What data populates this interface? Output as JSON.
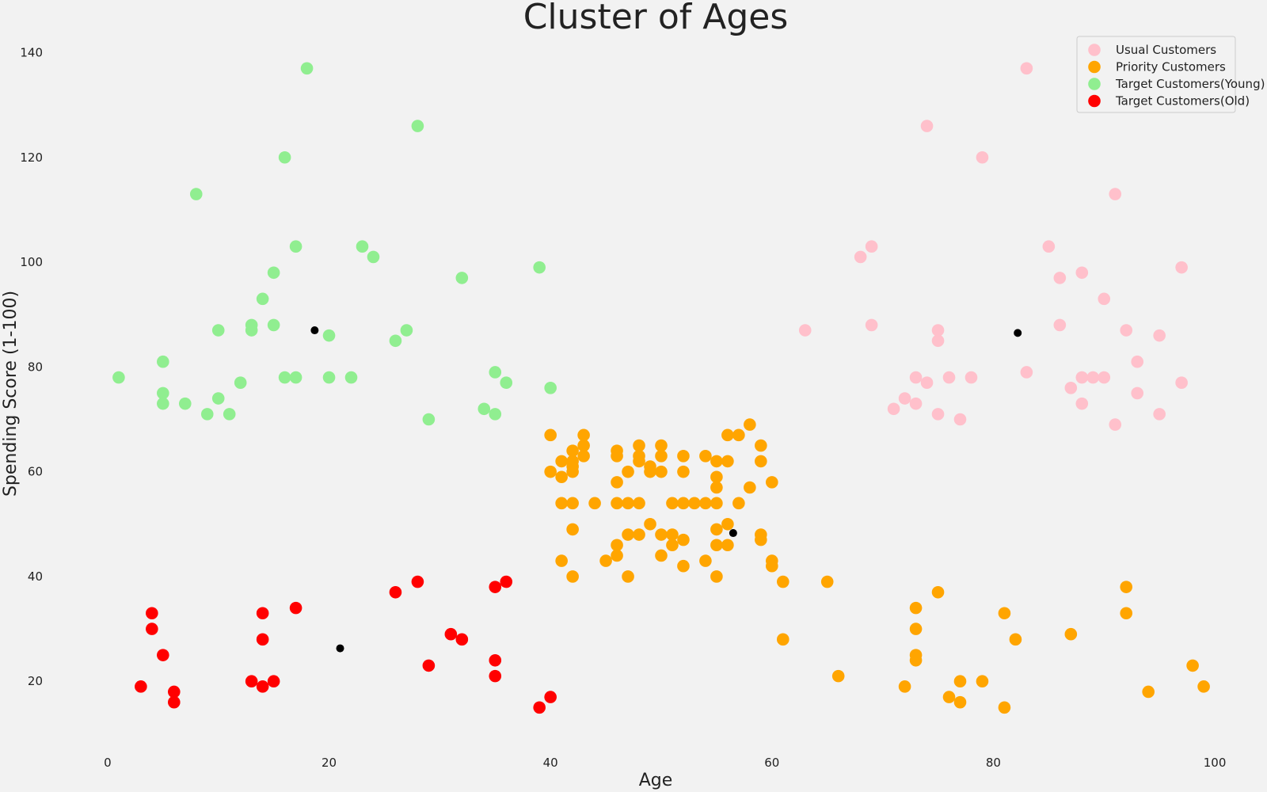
{
  "chart_data": {
    "type": "scatter",
    "title": "Cluster of Ages",
    "xlabel": "Age",
    "ylabel": "Spending Score (1-100)",
    "xlim": [
      -5,
      104
    ],
    "ylim": [
      9,
      144
    ],
    "xticks": [
      0,
      20,
      40,
      60,
      80,
      100
    ],
    "yticks": [
      20,
      40,
      60,
      80,
      100,
      120,
      140
    ],
    "grid": false,
    "legend_position": "top-right",
    "series": [
      {
        "name": "Usual Customers",
        "color": "#ffc0cb",
        "points": [
          [
            83,
            137
          ],
          [
            74,
            126
          ],
          [
            79,
            120
          ],
          [
            91,
            113
          ],
          [
            69,
            103
          ],
          [
            85,
            103
          ],
          [
            68,
            101
          ],
          [
            86,
            97
          ],
          [
            88,
            98
          ],
          [
            97,
            99
          ],
          [
            90,
            93
          ],
          [
            69,
            88
          ],
          [
            86,
            88
          ],
          [
            63,
            87
          ],
          [
            75,
            87
          ],
          [
            92,
            87
          ],
          [
            95,
            86
          ],
          [
            75,
            85
          ],
          [
            93,
            81
          ],
          [
            83,
            79
          ],
          [
            73,
            78
          ],
          [
            76,
            78
          ],
          [
            78,
            78
          ],
          [
            88,
            78
          ],
          [
            89,
            78
          ],
          [
            90,
            78
          ],
          [
            74,
            77
          ],
          [
            97,
            77
          ],
          [
            87,
            76
          ],
          [
            93,
            75
          ],
          [
            72,
            74
          ],
          [
            73,
            73
          ],
          [
            88,
            73
          ],
          [
            71,
            72
          ],
          [
            75,
            71
          ],
          [
            95,
            71
          ],
          [
            77,
            70
          ],
          [
            91,
            69
          ]
        ]
      },
      {
        "name": "Priority Customers",
        "color": "#ffa500",
        "points": [
          [
            58,
            69
          ],
          [
            40,
            67
          ],
          [
            43,
            67
          ],
          [
            56,
            67
          ],
          [
            57,
            67
          ],
          [
            43,
            65
          ],
          [
            48,
            65
          ],
          [
            50,
            65
          ],
          [
            59,
            65
          ],
          [
            42,
            64
          ],
          [
            46,
            64
          ],
          [
            54,
            63
          ],
          [
            43,
            63
          ],
          [
            46,
            63
          ],
          [
            48,
            63
          ],
          [
            50,
            63
          ],
          [
            52,
            63
          ],
          [
            41,
            62
          ],
          [
            42,
            62
          ],
          [
            48,
            62
          ],
          [
            55,
            62
          ],
          [
            56,
            62
          ],
          [
            59,
            62
          ],
          [
            42,
            61
          ],
          [
            49,
            61
          ],
          [
            40,
            60
          ],
          [
            42,
            60
          ],
          [
            47,
            60
          ],
          [
            49,
            60
          ],
          [
            50,
            60
          ],
          [
            52,
            60
          ],
          [
            41,
            59
          ],
          [
            55,
            59
          ],
          [
            46,
            58
          ],
          [
            60,
            58
          ],
          [
            55,
            57
          ],
          [
            58,
            57
          ],
          [
            41,
            54
          ],
          [
            42,
            54
          ],
          [
            44,
            54
          ],
          [
            46,
            54
          ],
          [
            47,
            54
          ],
          [
            48,
            54
          ],
          [
            51,
            54
          ],
          [
            52,
            54
          ],
          [
            53,
            54
          ],
          [
            54,
            54
          ],
          [
            55,
            54
          ],
          [
            57,
            54
          ],
          [
            49,
            50
          ],
          [
            56,
            50
          ],
          [
            42,
            49
          ],
          [
            55,
            49
          ],
          [
            47,
            48
          ],
          [
            48,
            48
          ],
          [
            50,
            48
          ],
          [
            51,
            48
          ],
          [
            59,
            48
          ],
          [
            52,
            47
          ],
          [
            59,
            47
          ],
          [
            46,
            46
          ],
          [
            51,
            46
          ],
          [
            55,
            46
          ],
          [
            56,
            46
          ],
          [
            46,
            44
          ],
          [
            50,
            44
          ],
          [
            41,
            43
          ],
          [
            45,
            43
          ],
          [
            54,
            43
          ],
          [
            60,
            43
          ],
          [
            52,
            42
          ],
          [
            60,
            42
          ],
          [
            42,
            40
          ],
          [
            47,
            40
          ],
          [
            55,
            40
          ],
          [
            61,
            39
          ],
          [
            65,
            39
          ],
          [
            92,
            38
          ],
          [
            75,
            37
          ],
          [
            73,
            34
          ],
          [
            81,
            33
          ],
          [
            92,
            33
          ],
          [
            73,
            30
          ],
          [
            87,
            29
          ],
          [
            61,
            28
          ],
          [
            82,
            28
          ],
          [
            73,
            25
          ],
          [
            73,
            24
          ],
          [
            98,
            23
          ],
          [
            66,
            21
          ],
          [
            77,
            20
          ],
          [
            79,
            20
          ],
          [
            72,
            19
          ],
          [
            99,
            19
          ],
          [
            94,
            18
          ],
          [
            76,
            17
          ],
          [
            77,
            16
          ],
          [
            81,
            15
          ]
        ]
      },
      {
        "name": "Target Customers(Young)",
        "color": "#90ee90",
        "points": [
          [
            18,
            137
          ],
          [
            28,
            126
          ],
          [
            16,
            120
          ],
          [
            8,
            113
          ],
          [
            17,
            103
          ],
          [
            23,
            103
          ],
          [
            24,
            101
          ],
          [
            39,
            99
          ],
          [
            15,
            98
          ],
          [
            32,
            97
          ],
          [
            14,
            93
          ],
          [
            13,
            88
          ],
          [
            15,
            88
          ],
          [
            10,
            87
          ],
          [
            13,
            87
          ],
          [
            27,
            87
          ],
          [
            20,
            86
          ],
          [
            26,
            85
          ],
          [
            5,
            81
          ],
          [
            35,
            79
          ],
          [
            1,
            78
          ],
          [
            16,
            78
          ],
          [
            17,
            78
          ],
          [
            20,
            78
          ],
          [
            22,
            78
          ],
          [
            12,
            77
          ],
          [
            36,
            77
          ],
          [
            40,
            76
          ],
          [
            5,
            75
          ],
          [
            10,
            74
          ],
          [
            5,
            73
          ],
          [
            7,
            73
          ],
          [
            34,
            72
          ],
          [
            9,
            71
          ],
          [
            11,
            71
          ],
          [
            35,
            71
          ],
          [
            29,
            70
          ]
        ]
      },
      {
        "name": "Target Customers(Old)",
        "color": "#ff0000",
        "points": [
          [
            28,
            39
          ],
          [
            36,
            39
          ],
          [
            35,
            38
          ],
          [
            26,
            37
          ],
          [
            17,
            34
          ],
          [
            4,
            33
          ],
          [
            14,
            33
          ],
          [
            4,
            30
          ],
          [
            31,
            29
          ],
          [
            14,
            28
          ],
          [
            32,
            28
          ],
          [
            5,
            25
          ],
          [
            35,
            24
          ],
          [
            29,
            23
          ],
          [
            35,
            21
          ],
          [
            13,
            20
          ],
          [
            15,
            20
          ],
          [
            3,
            19
          ],
          [
            14,
            19
          ],
          [
            6,
            18
          ],
          [
            40,
            17
          ],
          [
            6,
            16
          ],
          [
            39,
            15
          ]
        ]
      }
    ],
    "centroids": {
      "color": "#000000",
      "points": [
        [
          18.7,
          87
        ],
        [
          82.2,
          86.5
        ],
        [
          56.5,
          48.3
        ],
        [
          21,
          26.3
        ]
      ]
    }
  }
}
